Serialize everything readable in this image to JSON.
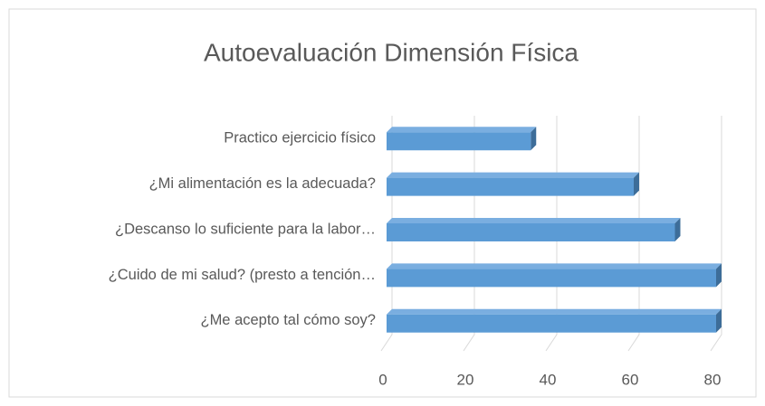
{
  "chart_data": {
    "type": "bar",
    "orientation": "horizontal",
    "title": "Autoevaluación Dimensión Física",
    "categories": [
      "Practico ejercicio físico",
      "¿Mi alimentación es la adecuada?",
      "¿Descanso lo suficiente para la labor…",
      "¿Cuido de mi salud? (presto a tención…",
      "¿Me acepto tal cómo soy?"
    ],
    "values": [
      35,
      60,
      70,
      80,
      80
    ],
    "color": "#5b9bd5",
    "xlim": [
      0,
      80
    ],
    "xticks": [
      0,
      20,
      40,
      60,
      80
    ],
    "grid": true
  }
}
